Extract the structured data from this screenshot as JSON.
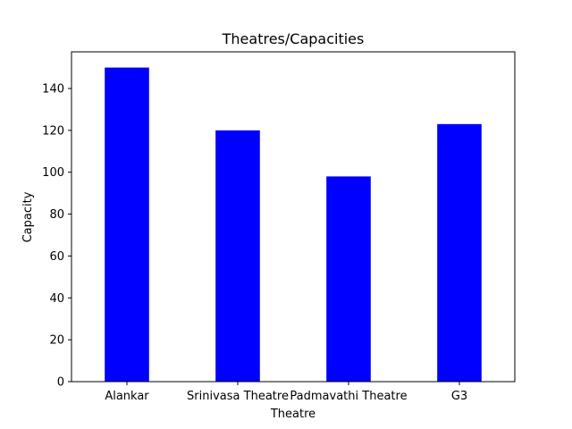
{
  "chart_data": {
    "type": "bar",
    "title": "Theatres/Capacities",
    "xlabel": "Theatre",
    "ylabel": "Capacity",
    "categories": [
      "Alankar",
      "Srinivasa Theatre",
      "Padmavathi Theatre",
      "G3"
    ],
    "values": [
      150,
      120,
      98,
      123
    ],
    "ylim": [
      0,
      157.5
    ],
    "yticks": [
      0,
      20,
      40,
      60,
      80,
      100,
      120,
      140
    ],
    "bar_color": "#0000ff",
    "grid": false,
    "legend": "none"
  }
}
